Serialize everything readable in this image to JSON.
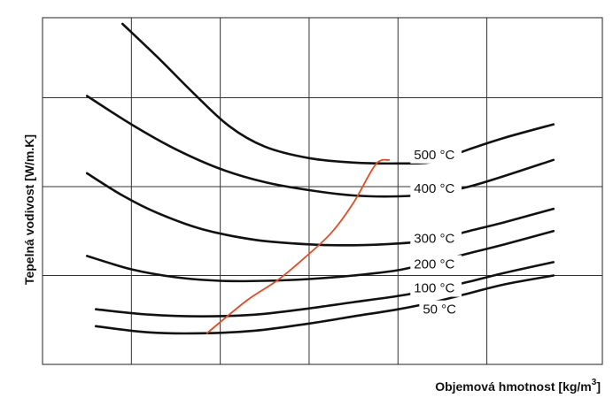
{
  "chart_data": {
    "type": "line",
    "title": "",
    "xlabel": "Objemová hmotnost [kg/m",
    "xlabel_sup": "3",
    "xlabel_end": "]",
    "ylabel": "Tepelná vodivost [W/m.K",
    "grid": true,
    "xlim": [
      0,
      6.3
    ],
    "ylim": [
      0,
      3.9
    ],
    "series": [
      {
        "name": "500 °C",
        "color": "#111111",
        "points": [
          [
            0.9,
            3.83
          ],
          [
            1.3,
            3.45
          ],
          [
            1.7,
            3.05
          ],
          [
            2.1,
            2.68
          ],
          [
            2.5,
            2.45
          ],
          [
            3.0,
            2.32
          ],
          [
            3.5,
            2.27
          ],
          [
            4.0,
            2.26
          ],
          [
            4.4,
            2.28
          ],
          [
            4.8,
            2.42
          ],
          [
            5.2,
            2.55
          ],
          [
            5.75,
            2.7
          ]
        ]
      },
      {
        "name": "400 °C",
        "color": "#111111",
        "points": [
          [
            0.5,
            3.02
          ],
          [
            1.0,
            2.7
          ],
          [
            1.5,
            2.42
          ],
          [
            2.0,
            2.2
          ],
          [
            2.5,
            2.05
          ],
          [
            3.0,
            1.96
          ],
          [
            3.5,
            1.9
          ],
          [
            4.0,
            1.89
          ],
          [
            4.4,
            1.92
          ],
          [
            4.8,
            2.0
          ],
          [
            5.2,
            2.12
          ],
          [
            5.75,
            2.3
          ]
        ]
      },
      {
        "name": "300 °C",
        "color": "#111111",
        "points": [
          [
            0.5,
            2.15
          ],
          [
            0.9,
            1.9
          ],
          [
            1.3,
            1.7
          ],
          [
            1.8,
            1.52
          ],
          [
            2.4,
            1.4
          ],
          [
            3.0,
            1.35
          ],
          [
            3.5,
            1.34
          ],
          [
            4.0,
            1.36
          ],
          [
            4.4,
            1.4
          ],
          [
            4.8,
            1.5
          ],
          [
            5.2,
            1.6
          ],
          [
            5.75,
            1.75
          ]
        ]
      },
      {
        "name": "200 °C",
        "color": "#111111",
        "points": [
          [
            0.5,
            1.22
          ],
          [
            1.0,
            1.07
          ],
          [
            1.5,
            0.98
          ],
          [
            2.0,
            0.94
          ],
          [
            2.5,
            0.94
          ],
          [
            3.0,
            0.96
          ],
          [
            3.5,
            1.0
          ],
          [
            4.0,
            1.06
          ],
          [
            4.4,
            1.15
          ],
          [
            4.8,
            1.25
          ],
          [
            5.2,
            1.35
          ],
          [
            5.75,
            1.5
          ]
        ]
      },
      {
        "name": "100 °C",
        "color": "#111111",
        "points": [
          [
            0.6,
            0.62
          ],
          [
            1.2,
            0.56
          ],
          [
            1.8,
            0.54
          ],
          [
            2.4,
            0.56
          ],
          [
            3.0,
            0.63
          ],
          [
            3.5,
            0.7
          ],
          [
            4.0,
            0.77
          ],
          [
            4.4,
            0.84
          ],
          [
            4.8,
            0.93
          ],
          [
            5.2,
            1.03
          ],
          [
            5.75,
            1.15
          ]
        ]
      },
      {
        "name": "50 °C",
        "color": "#111111",
        "points": [
          [
            0.6,
            0.43
          ],
          [
            1.2,
            0.36
          ],
          [
            1.8,
            0.35
          ],
          [
            2.4,
            0.38
          ],
          [
            3.0,
            0.46
          ],
          [
            3.5,
            0.54
          ],
          [
            4.0,
            0.62
          ],
          [
            4.4,
            0.7
          ],
          [
            4.8,
            0.8
          ],
          [
            5.2,
            0.9
          ],
          [
            5.75,
            1.0
          ]
        ]
      },
      {
        "name": "",
        "color": "#e84a1e",
        "points": [
          [
            1.85,
            0.35
          ],
          [
            2.3,
            0.72
          ],
          [
            2.65,
            0.95
          ],
          [
            2.95,
            1.2
          ],
          [
            3.25,
            1.48
          ],
          [
            3.5,
            1.82
          ],
          [
            3.75,
            2.25
          ],
          [
            3.9,
            2.3
          ]
        ]
      }
    ],
    "labels": [
      {
        "text": "500 °C",
        "x": 4.1,
        "y": 2.36
      },
      {
        "text": "400 °C",
        "x": 4.1,
        "y": 1.98
      },
      {
        "text": "300 °C",
        "x": 4.1,
        "y": 1.42
      },
      {
        "text": "200 °C",
        "x": 4.1,
        "y": 1.13
      },
      {
        "text": "100 °C",
        "x": 4.1,
        "y": 0.86
      },
      {
        "text": "50 °C",
        "x": 4.2,
        "y": 0.62
      }
    ]
  }
}
